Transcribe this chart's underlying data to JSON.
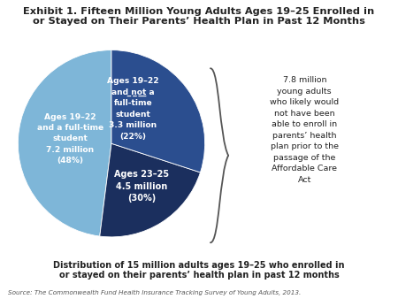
{
  "title_line1": "Exhibit 1. Fifteen Million Young Adults Ages 19–25 Enrolled in",
  "title_line2": "or Stayed on Their Parents’ Health Plan in Past 12 Months",
  "slices": [
    48,
    22,
    30
  ],
  "colors": [
    "#7eb6d8",
    "#1b2f5e",
    "#2b4e8f"
  ],
  "label0": "Ages 19–22\nand a full-time\nstudent\n7.2 million\n(48%)",
  "label1_lines": [
    "Ages 19–22",
    "and ̲n̲o̲t̲ a",
    "full-time",
    "student",
    "3.3 million",
    "(22%)"
  ],
  "label2": "Ages 23–25\n4.5 million\n(30%)",
  "brace_text": "7.8 million\nyoung adults\nwho likely would\nnot have been\nable to enroll in\nparents’ health\nplan prior to the\npassage of the\nAffordable Care\nAct",
  "subtitle": "Distribution of 15 million adults ages 19–25 who enrolled in\nor stayed on their parents’ health plan in past 12 months",
  "source": "Source: The Commonwealth Fund Health Insurance Tracking Survey of Young Adults, 2013.",
  "bg_color": "#ffffff",
  "text_dark": "#222222",
  "text_white": "#ffffff",
  "text_gray": "#555555"
}
